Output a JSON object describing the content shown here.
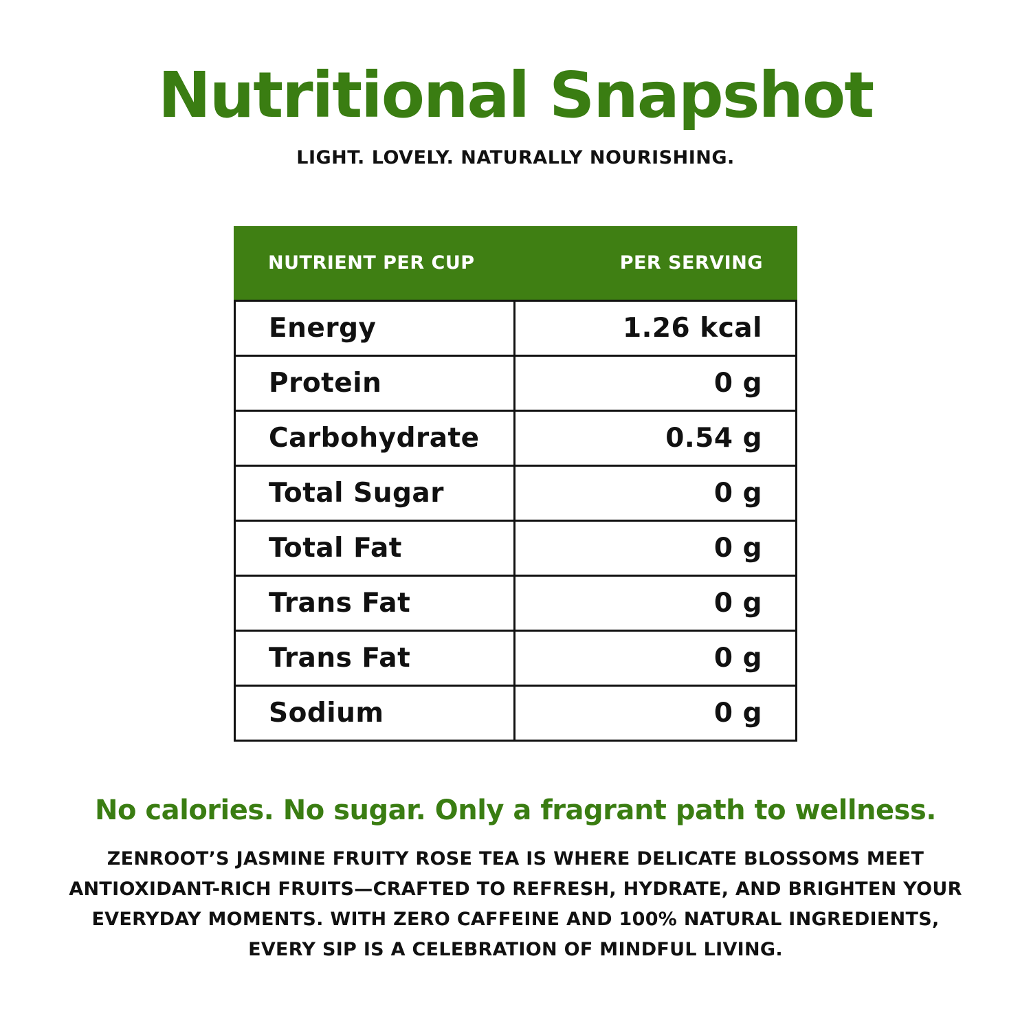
{
  "header": {
    "title": "Nutritional Snapshot",
    "subtitle": "LIGHT. LOVELY. NATURALLY NOURISHING."
  },
  "table": {
    "columns": [
      "NUTRIENT PER CUP",
      "PER SERVING"
    ],
    "rows": [
      {
        "name": "Energy",
        "value": "1.26 kcal"
      },
      {
        "name": "Protein",
        "value": "0 g"
      },
      {
        "name": "Carbohydrate",
        "value": "0.54 g"
      },
      {
        "name": "Total Sugar",
        "value": "0 g"
      },
      {
        "name": "Total Fat",
        "value": "0 g"
      },
      {
        "name": "Trans Fat",
        "value": "0 g"
      },
      {
        "name": "Trans Fat",
        "value": "0 g"
      },
      {
        "name": "Sodium",
        "value": "0 g"
      }
    ]
  },
  "footer": {
    "tagline": "No calories. No sugar. Only a fragrant path to wellness.",
    "description": "ZENROOT’S JASMINE FRUITY ROSE TEA IS WHERE DELICATE BLOSSOMS MEET ANTIOXIDANT-RICH FRUITS—CRAFTED TO REFRESH, HYDRATE, AND BRIGHTEN YOUR EVERYDAY MOMENTS. WITH ZERO CAFFEINE AND 100% NATURAL INGREDIENTS, EVERY SIP IS A CELEBRATION OF MINDFUL LIVING."
  },
  "colors": {
    "accent_green": "#3a7d12",
    "header_green": "#3f7f13",
    "text": "#111111",
    "background": "#ffffff"
  }
}
